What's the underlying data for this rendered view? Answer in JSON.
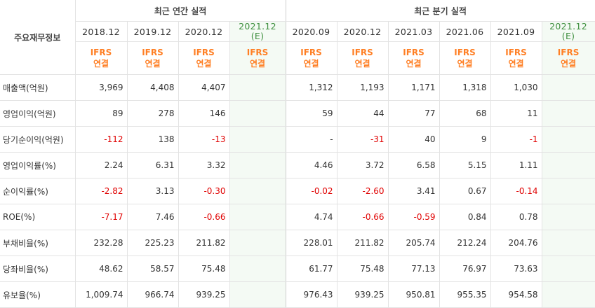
{
  "corner_label": "주요재무정보",
  "groups": {
    "annual": "최근 연간 실적",
    "quarter": "최근 분기 실적"
  },
  "periods": [
    "2018.12",
    "2019.12",
    "2020.12",
    "2021.12",
    "2020.09",
    "2020.12",
    "2021.03",
    "2021.06",
    "2021.09",
    "2021.12"
  ],
  "estimate_mark": "(E)",
  "ifrs_label": "IFRS",
  "ifrs_sub": "연결",
  "rows": [
    {
      "label": "매출액(억원)",
      "values": [
        "3,969",
        "4,408",
        "4,407",
        "",
        "1,312",
        "1,193",
        "1,171",
        "1,318",
        "1,030",
        ""
      ]
    },
    {
      "label": "영업이익(억원)",
      "values": [
        "89",
        "278",
        "146",
        "",
        "59",
        "44",
        "77",
        "68",
        "11",
        ""
      ]
    },
    {
      "label": "당기순이익(억원)",
      "values": [
        "-112",
        "138",
        "-13",
        "",
        "-",
        "-31",
        "40",
        "9",
        "-1",
        ""
      ]
    },
    {
      "label": "영업이익률(%)",
      "values": [
        "2.24",
        "6.31",
        "3.32",
        "",
        "4.46",
        "3.72",
        "6.58",
        "5.15",
        "1.11",
        ""
      ]
    },
    {
      "label": "순이익률(%)",
      "values": [
        "-2.82",
        "3.13",
        "-0.30",
        "",
        "-0.02",
        "-2.60",
        "3.41",
        "0.67",
        "-0.14",
        ""
      ]
    },
    {
      "label": "ROE(%)",
      "values": [
        "-7.17",
        "7.46",
        "-0.66",
        "",
        "4.74",
        "-0.66",
        "-0.59",
        "0.84",
        "0.78",
        ""
      ]
    },
    {
      "label": "부채비율(%)",
      "values": [
        "232.28",
        "225.23",
        "211.82",
        "",
        "228.01",
        "211.82",
        "205.74",
        "212.24",
        "204.76",
        ""
      ]
    },
    {
      "label": "당좌비율(%)",
      "values": [
        "48.62",
        "58.57",
        "75.48",
        "",
        "61.77",
        "75.48",
        "77.13",
        "76.97",
        "73.63",
        ""
      ]
    },
    {
      "label": "유보율(%)",
      "values": [
        "1,009.74",
        "966.74",
        "939.25",
        "",
        "976.43",
        "939.25",
        "950.81",
        "955.35",
        "954.58",
        ""
      ]
    }
  ],
  "colors": {
    "negative": "#e00000",
    "ifrs": "#ff7f24",
    "estimate_bg": "#f4faf4",
    "estimate_text": "#3f8f3f"
  }
}
